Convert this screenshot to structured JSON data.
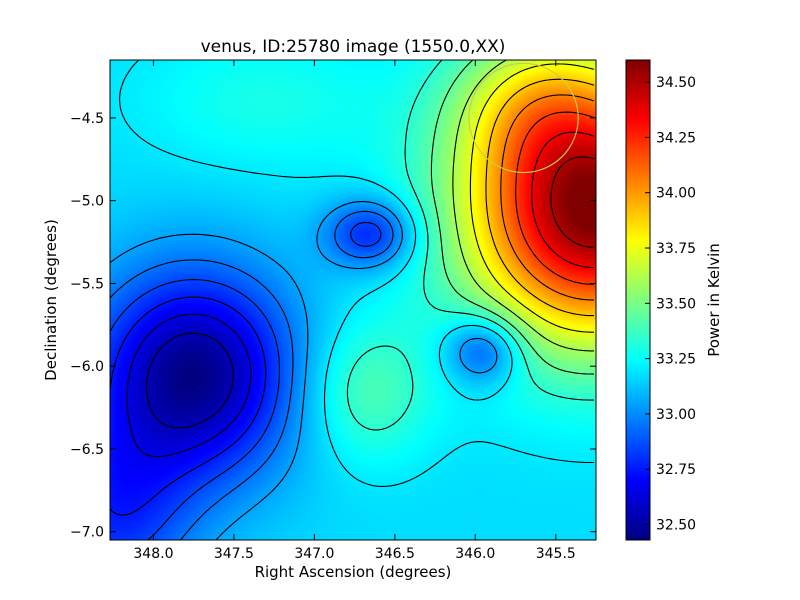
{
  "chart_data": {
    "type": "heatmap",
    "title": "venus, ID:25780 image (1550.0,XX)",
    "xlabel": "Right Ascension (degrees)",
    "ylabel": "Declination (degrees)",
    "xlim": [
      348.27,
      345.25
    ],
    "ylim": [
      -7.05,
      -4.15
    ],
    "x_ticks": [
      348.0,
      347.5,
      347.0,
      346.5,
      346.0,
      345.5
    ],
    "x_tick_labels": [
      "348.0",
      "347.5",
      "347.0",
      "346.5",
      "346.0",
      "345.5"
    ],
    "y_ticks": [
      -4.5,
      -5.0,
      -5.5,
      -6.0,
      -6.5,
      -7.0
    ],
    "y_tick_labels": [
      "−4.5",
      "−5.0",
      "−5.5",
      "−6.0",
      "−6.5",
      "−7.0"
    ],
    "colorbar": {
      "label": "Power in Kelvin",
      "range": [
        32.43,
        34.6
      ],
      "ticks": [
        32.5,
        32.75,
        33.0,
        33.25,
        33.5,
        33.75,
        34.0,
        34.25,
        34.5
      ],
      "tick_labels": [
        "32.50",
        "32.75",
        "33.00",
        "33.25",
        "33.50",
        "33.75",
        "34.00",
        "34.25",
        "34.50"
      ],
      "colormap": "jet"
    },
    "field": {
      "base": 33.17,
      "features": [
        {
          "ra": 345.27,
          "dec": -5.05,
          "amp": 1.45,
          "sra": 0.55,
          "sdec": 0.55
        },
        {
          "ra": 345.65,
          "dec": -4.4,
          "amp": 0.3,
          "sra": 0.35,
          "sdec": 0.3
        },
        {
          "ra": 347.75,
          "dec": -6.05,
          "amp": -0.72,
          "sra": 0.45,
          "sdec": 0.45
        },
        {
          "ra": 348.25,
          "dec": -6.9,
          "amp": -0.35,
          "sra": 0.35,
          "sdec": 0.4
        },
        {
          "ra": 346.65,
          "dec": -5.2,
          "amp": -0.42,
          "sra": 0.2,
          "sdec": 0.15
        },
        {
          "ra": 345.95,
          "dec": -5.9,
          "amp": -0.4,
          "sra": 0.17,
          "sdec": 0.15
        },
        {
          "ra": 346.68,
          "dec": -6.15,
          "amp": 0.25,
          "sra": 0.28,
          "sdec": 0.3
        },
        {
          "ra": 347.3,
          "dec": -4.4,
          "amp": 0.12,
          "sra": 0.55,
          "sdec": 0.3
        }
      ]
    },
    "contour_levels": [
      32.55,
      32.65,
      32.75,
      32.85,
      32.95,
      33.05,
      33.2,
      33.33,
      33.45,
      33.6,
      33.75,
      33.9,
      34.05,
      34.2,
      34.35,
      34.5
    ],
    "beam_circle": {
      "ra": 345.7,
      "dec": -4.5,
      "radius_deg": 0.33,
      "color": "#d4c84a"
    }
  }
}
